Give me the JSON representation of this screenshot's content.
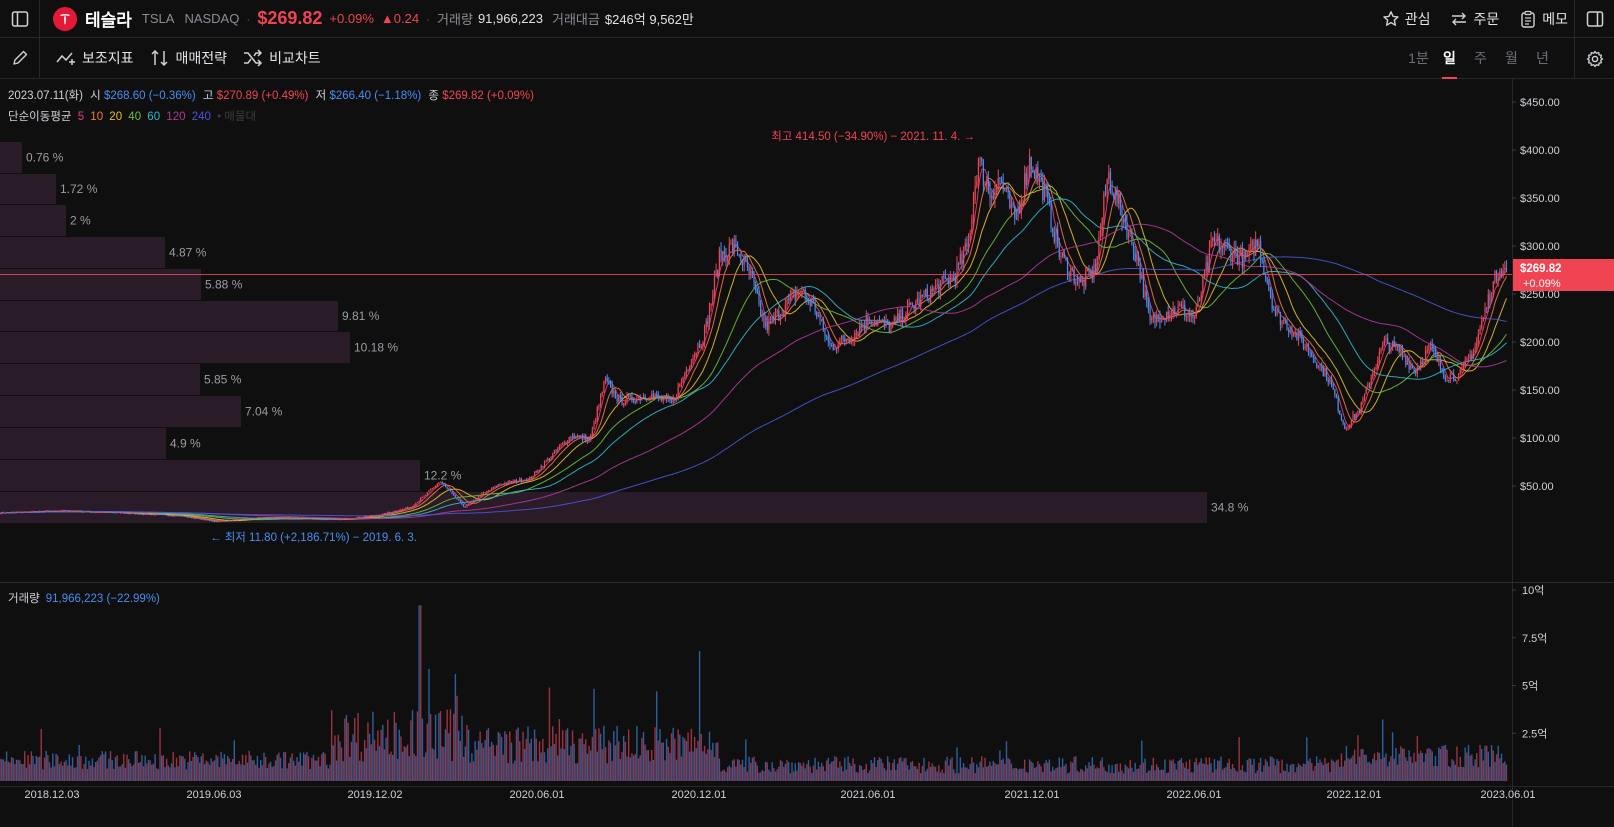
{
  "header": {
    "stock_name": "테슬라",
    "ticker": "TSLA",
    "exchange": "NASDAQ",
    "price": "$269.82",
    "change_pct": "+0.09%",
    "change_abs": "▲0.24",
    "volume_label": "거래량",
    "volume_value": "91,966,223",
    "amount_label": "거래대금",
    "amount_value": "$246억 9,562만",
    "actions": {
      "watch": "관심",
      "order": "주문",
      "memo": "메모"
    }
  },
  "toolbar": {
    "indicators": "보조지표",
    "strategy": "매매전략",
    "compare": "비교차트",
    "periods": [
      "1분",
      "일",
      "주",
      "월",
      "년"
    ],
    "active_period": "일"
  },
  "ohlc": {
    "date": "2023.07.11(화)",
    "open_label": "시",
    "open": "$268.60 (−0.36%)",
    "high_label": "고",
    "high": "$270.89 (+0.49%)",
    "low_label": "저",
    "low": "$266.40 (−1.18%)",
    "close_label": "종",
    "close": "$269.82 (+0.09%)"
  },
  "ma": {
    "label": "단순이동평균",
    "periods": [
      {
        "p": "5",
        "color": "#e0407a"
      },
      {
        "p": "10",
        "color": "#f07a3a"
      },
      {
        "p": "20",
        "color": "#e6c12e"
      },
      {
        "p": "40",
        "color": "#6cbf3a"
      },
      {
        "p": "60",
        "color": "#2fb8c9"
      },
      {
        "p": "120",
        "color": "#b0389b"
      },
      {
        "p": "240",
        "color": "#4a55d6"
      }
    ],
    "extra": "• 매물대"
  },
  "price_axis": [
    "$450.00",
    "$400.00",
    "$350.00",
    "$300.00",
    "$250.00",
    "$200.00",
    "$150.00",
    "$100.00",
    "$50.00"
  ],
  "current_tag": {
    "price": "$269.82",
    "pct": "+0.09%"
  },
  "annotations": {
    "high": "최고 414.50 (−34.90%) − 2021. 11. 4. →",
    "low": "← 최저 11.80 (+2,186.71%) − 2019. 6. 3."
  },
  "volume_profile": [
    "0.76 %",
    "1.72 %",
    "2 %",
    "4.87 %",
    "5.88 %",
    "9.81 %",
    "10.18 %",
    "5.85 %",
    "7.04 %",
    "4.9 %",
    "12.2 %",
    "34.8 %"
  ],
  "volume": {
    "label": "거래량",
    "value": "91,966,223 (−22.99%)",
    "axis": [
      "10억",
      "7.5억",
      "5억",
      "2.5억"
    ]
  },
  "x_axis": [
    "2018.12.03",
    "2019.06.03",
    "2019.12.02",
    "2020.06.01",
    "2020.12.01",
    "2021.06.01",
    "2021.12.01",
    "2022.06.01",
    "2022.12.01",
    "2023.06.01"
  ],
  "chart_data": {
    "type": "line",
    "title": "",
    "x": [
      "2018.12.03",
      "2019.06.03",
      "2019.12.02",
      "2020.06.01",
      "2020.12.01",
      "2021.06.01",
      "2021.12.01",
      "2022.06.01",
      "2022.12.01",
      "2023.06.01",
      "2023.07.11"
    ],
    "series": [
      {
        "values": [
          22,
          13,
          28,
          60,
          195,
          205,
          360,
          235,
          130,
          205,
          269.82
        ]
      }
    ],
    "ylim": [
      0,
      470
    ],
    "grid": false
  }
}
